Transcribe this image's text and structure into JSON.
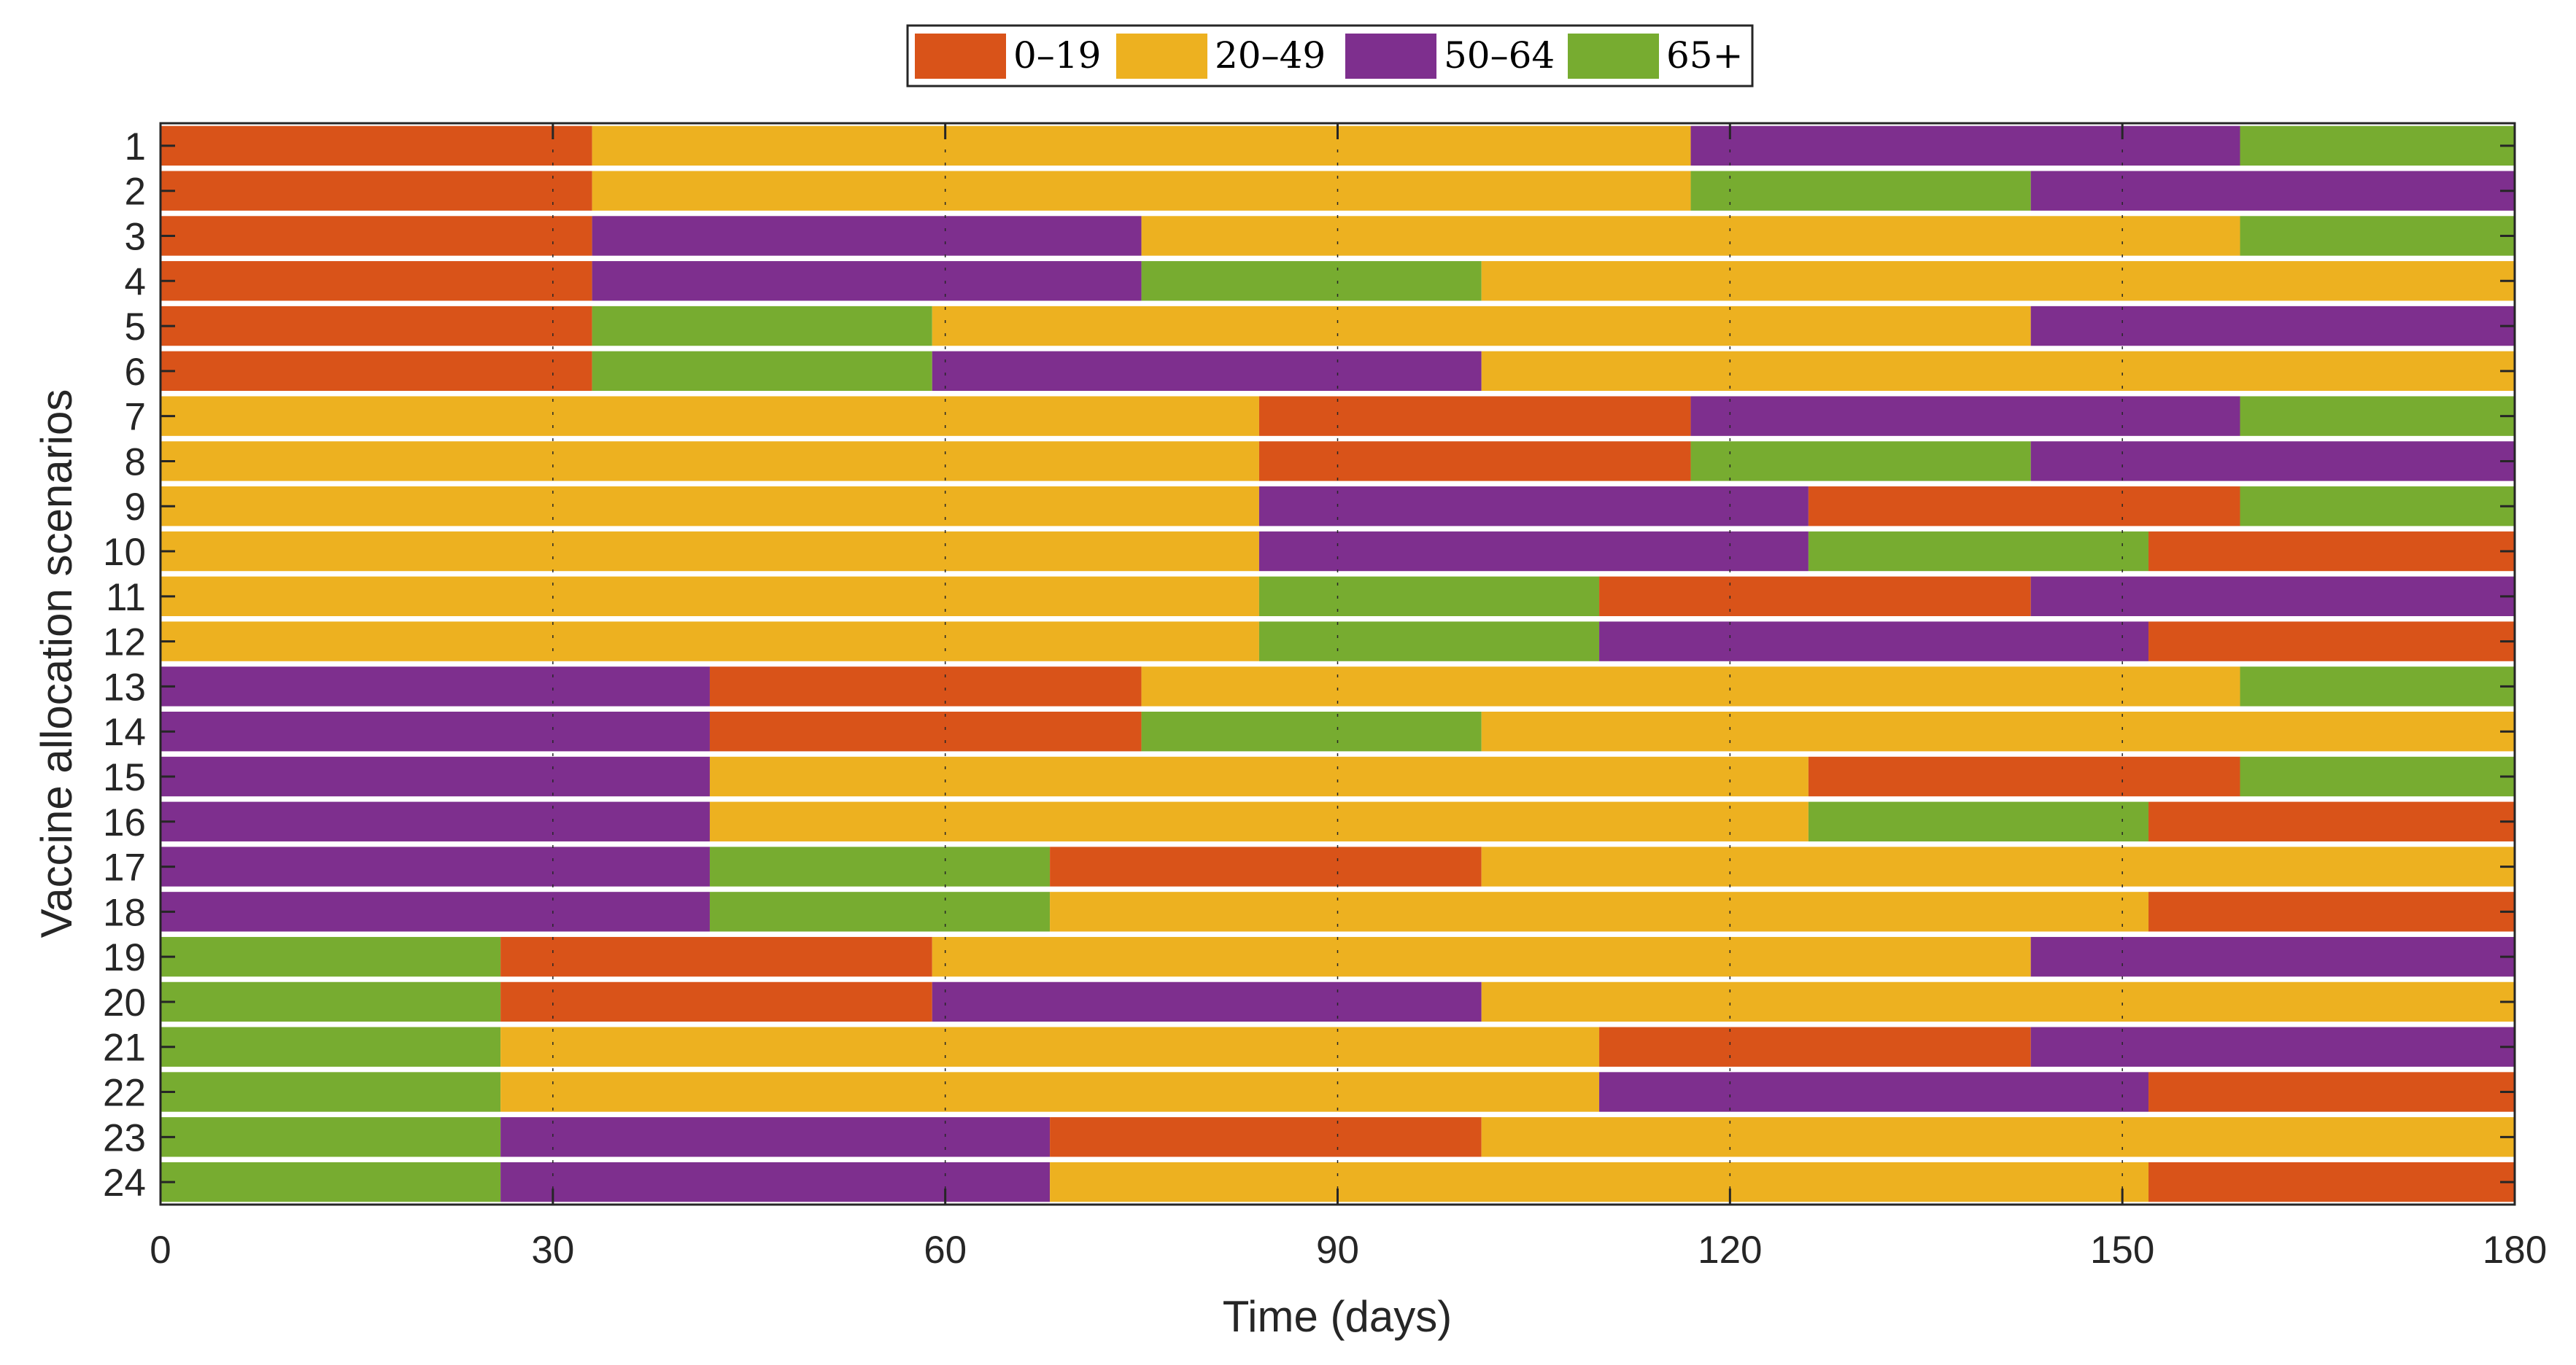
{
  "chart_data": {
    "type": "bar",
    "orientation": "horizontal-stacked",
    "xlabel": "Time (days)",
    "ylabel": "Vaccine allocation scenarios",
    "xlim": [
      0,
      180
    ],
    "xticks": [
      0,
      30,
      60,
      90,
      120,
      150,
      180
    ],
    "grid": true,
    "legend_position": "top-center",
    "groups": [
      {
        "key": "a",
        "name": "0–19",
        "color": "#D95319"
      },
      {
        "key": "b",
        "name": "20–49",
        "color": "#EDB120"
      },
      {
        "key": "c",
        "name": "50–64",
        "color": "#7E2F8E"
      },
      {
        "key": "d",
        "name": "65+",
        "color": "#77AC30"
      }
    ],
    "durations_days": {
      "a": 33,
      "b": 84,
      "c": 42,
      "d": 26
    },
    "scenarios": [
      {
        "label": "1",
        "order": [
          "a",
          "b",
          "c",
          "d"
        ]
      },
      {
        "label": "2",
        "order": [
          "a",
          "b",
          "d",
          "c"
        ]
      },
      {
        "label": "3",
        "order": [
          "a",
          "c",
          "b",
          "d"
        ]
      },
      {
        "label": "4",
        "order": [
          "a",
          "c",
          "d",
          "b"
        ]
      },
      {
        "label": "5",
        "order": [
          "a",
          "d",
          "b",
          "c"
        ]
      },
      {
        "label": "6",
        "order": [
          "a",
          "d",
          "c",
          "b"
        ]
      },
      {
        "label": "7",
        "order": [
          "b",
          "a",
          "c",
          "d"
        ]
      },
      {
        "label": "8",
        "order": [
          "b",
          "a",
          "d",
          "c"
        ]
      },
      {
        "label": "9",
        "order": [
          "b",
          "c",
          "a",
          "d"
        ]
      },
      {
        "label": "10",
        "order": [
          "b",
          "c",
          "d",
          "a"
        ]
      },
      {
        "label": "11",
        "order": [
          "b",
          "d",
          "a",
          "c"
        ]
      },
      {
        "label": "12",
        "order": [
          "b",
          "d",
          "c",
          "a"
        ]
      },
      {
        "label": "13",
        "order": [
          "c",
          "a",
          "b",
          "d"
        ]
      },
      {
        "label": "14",
        "order": [
          "c",
          "a",
          "d",
          "b"
        ]
      },
      {
        "label": "15",
        "order": [
          "c",
          "b",
          "a",
          "d"
        ]
      },
      {
        "label": "16",
        "order": [
          "c",
          "b",
          "d",
          "a"
        ]
      },
      {
        "label": "17",
        "order": [
          "c",
          "d",
          "a",
          "b"
        ]
      },
      {
        "label": "18",
        "order": [
          "c",
          "d",
          "b",
          "a"
        ]
      },
      {
        "label": "19",
        "order": [
          "d",
          "a",
          "b",
          "c"
        ]
      },
      {
        "label": "20",
        "order": [
          "d",
          "a",
          "c",
          "b"
        ]
      },
      {
        "label": "21",
        "order": [
          "d",
          "b",
          "a",
          "c"
        ]
      },
      {
        "label": "22",
        "order": [
          "d",
          "b",
          "c",
          "a"
        ]
      },
      {
        "label": "23",
        "order": [
          "d",
          "c",
          "a",
          "b"
        ]
      },
      {
        "label": "24",
        "order": [
          "d",
          "c",
          "b",
          "a"
        ]
      }
    ]
  }
}
